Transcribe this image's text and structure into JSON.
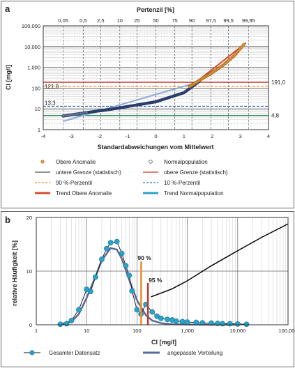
{
  "colors": {
    "grid": "#c8c8c8",
    "axis": "#333333",
    "anomaly_fill": "#e69a3c",
    "anomaly_line": "#d94a2a",
    "normal_dot": "#2b3f6e",
    "p90": "#f08a2a",
    "p10": "#3a64b0",
    "upper_limit": "#c0392b",
    "lower_limit": "#2e8b57",
    "trend_normal": "#8ea8d8",
    "dataset_fill": "#2aa3c8",
    "fitted": "#5a6a98",
    "black": "#000000"
  },
  "chart_data": [
    {
      "panel_label": "a",
      "type": "scatter",
      "title": "Pertenzil [%]",
      "xlabel": "Standardabweichungen vom Mittelwert",
      "ylabel": "Cl [mg/l]",
      "xlim": [
        -4,
        4
      ],
      "ylim": [
        1,
        100000
      ],
      "yscale": "log",
      "xticks": [
        "-4",
        "-3",
        "-2",
        "-1",
        "0",
        "1",
        "2",
        "3",
        "4"
      ],
      "yticks": [
        "1",
        "10",
        "100",
        "1,000",
        "10,000",
        "100,000"
      ],
      "top_ticks": [
        {
          "z": -3.29,
          "label": "0,05"
        },
        {
          "z": -2.58,
          "label": "0,5"
        },
        {
          "z": -1.96,
          "label": "2,5"
        },
        {
          "z": -1.28,
          "label": "10"
        },
        {
          "z": -0.67,
          "label": "25"
        },
        {
          "z": 0,
          "label": "50"
        },
        {
          "z": 0.67,
          "label": "75"
        },
        {
          "z": 1.28,
          "label": "90"
        },
        {
          "z": 1.96,
          "label": "97,5"
        },
        {
          "z": 2.58,
          "label": "99,5"
        },
        {
          "z": 3.29,
          "label": "99,95"
        }
      ],
      "hlines": {
        "upper_limit": 191.0,
        "p90": 121.0,
        "p10": 13.3,
        "lower_limit": 4.8
      },
      "hline_labels": {
        "upper_limit": "191,0",
        "p90": "121,0",
        "p10": "13,3",
        "lower_limit": "4,8"
      },
      "normal_curve": {
        "z": [
          -3.3,
          -2.5,
          -1.5,
          0,
          1.0,
          1.3,
          1.6
        ],
        "cl": [
          4.5,
          6.5,
          10,
          22,
          60,
          120,
          240
        ]
      },
      "anomaly_curve": {
        "z": [
          1.2,
          1.6,
          2.0,
          2.4,
          2.8,
          3.15
        ],
        "cl": [
          120,
          260,
          550,
          1300,
          3800,
          14000
        ]
      },
      "normal_trend": {
        "z": [
          -3.3,
          1.3
        ],
        "cl": [
          2.5,
          160
        ]
      },
      "anomaly_trend": {
        "z": [
          1.2,
          3.2
        ],
        "cl": [
          110,
          15000
        ]
      },
      "legend": [
        {
          "key": "anomaly",
          "label": "Obere Anomalie"
        },
        {
          "key": "normal",
          "label": "Normalpopulation"
        },
        {
          "key": "lower",
          "label": "untere Grenze (statistisch)"
        },
        {
          "key": "upper",
          "label": "obere Grenze (statistisch)"
        },
        {
          "key": "p90",
          "label": "90 %-Perzentil"
        },
        {
          "key": "p10",
          "label": "10 %-Perzentil"
        },
        {
          "key": "trend_anomaly",
          "label": "Trend Obere Anomalie"
        },
        {
          "key": "trend_normal",
          "label": "Trend Normalpopulation"
        }
      ]
    },
    {
      "panel_label": "b",
      "type": "line",
      "xlabel": "Cl [mg/l]",
      "ylabel": "relative Häufigkeit [%]",
      "xscale": "log",
      "xlim": [
        1,
        100000
      ],
      "ylim": [
        0,
        20
      ],
      "xticks": [
        "1",
        "10",
        "100",
        "1,000",
        "10,000",
        "100,000"
      ],
      "yticks": [
        "0",
        "10",
        "20"
      ],
      "series": [
        {
          "name": "Gesamter Datensatz",
          "x": [
            3,
            4,
            5,
            7,
            10,
            12,
            15,
            20,
            25,
            30,
            40,
            50,
            60,
            70,
            80,
            100,
            120,
            150,
            200,
            250,
            300,
            400,
            500,
            600,
            800,
            1000,
            1500,
            2000,
            3000,
            4000,
            5000,
            7000,
            10000,
            15000
          ],
          "y": [
            0.1,
            0.2,
            0.8,
            2.8,
            6.6,
            6.2,
            8.9,
            12.2,
            14.2,
            15.3,
            15.5,
            13.3,
            11.0,
            9.2,
            6.3,
            2.8,
            2.0,
            3.8,
            2.4,
            1.6,
            1.2,
            1.0,
            0.9,
            0.7,
            0.6,
            0.5,
            0.45,
            0.35,
            0.3,
            0.25,
            0.2,
            0.2,
            0.15,
            0.1
          ]
        },
        {
          "name": "angepasste Verteilung",
          "x": [
            3,
            5,
            7,
            10,
            15,
            20,
            30,
            40,
            50,
            70,
            100,
            150,
            200,
            300,
            500,
            1000,
            2000,
            5000,
            10000
          ],
          "y": [
            0.1,
            0.6,
            2.0,
            5.0,
            9.0,
            12.0,
            14.3,
            14.0,
            12.3,
            8.4,
            4.6,
            1.8,
            0.8,
            0.3,
            0.1,
            0.05,
            0.02,
            0.01,
            0.01
          ]
        }
      ],
      "cumulative_curve": {
        "x": [
          190,
          500,
          1000,
          3000,
          10000,
          30000,
          100000
        ],
        "y": [
          5.2,
          6.7,
          8.2,
          11.0,
          13.8,
          16.3,
          18.8
        ]
      },
      "markers": [
        {
          "label": "90 %",
          "x": 121,
          "height": 11.8,
          "key": "p90"
        },
        {
          "label": "95 %",
          "x": 165,
          "height": 7.8,
          "key": "upper_limit"
        }
      ]
    }
  ]
}
